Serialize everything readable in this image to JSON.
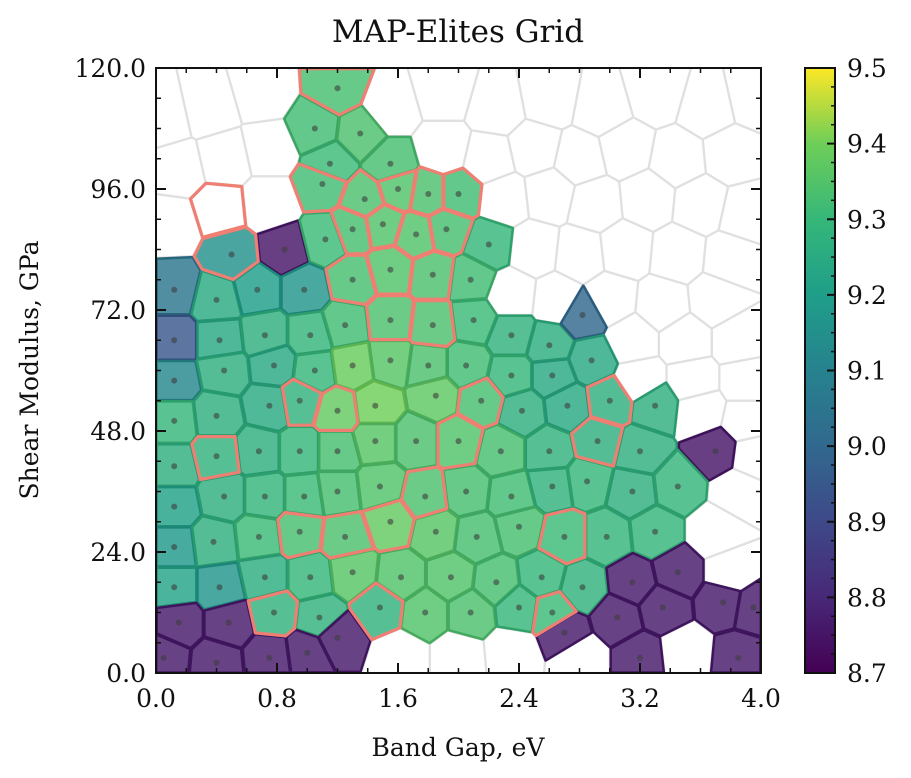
{
  "chart_data": {
    "type": "heatmap",
    "subtype": "voronoi-map-elites",
    "title": "MAP-Elites Grid",
    "xlabel": "Band Gap, eV",
    "ylabel": "Shear Modulus, GPa",
    "xlim": [
      0.0,
      4.0
    ],
    "ylim": [
      0.0,
      120.0
    ],
    "xticks": [
      "0.0",
      "0.8",
      "1.6",
      "2.4",
      "3.2",
      "4.0"
    ],
    "yticks": [
      "0.0",
      "24.0",
      "48.0",
      "72.0",
      "96.0",
      "120.0"
    ],
    "colorbar": {
      "min": 8.7,
      "max": 9.5,
      "ticks": [
        "8.7",
        "8.8",
        "8.9",
        "9.0",
        "9.1",
        "9.2",
        "9.3",
        "9.4",
        "9.5"
      ],
      "colormap": "viridis"
    },
    "highlight_color": "#f07f73",
    "empty_cell_color": "#e0e0e0",
    "cells": [
      {
        "x": 0.05,
        "y": 110,
        "v": null
      },
      {
        "x": 0.35,
        "y": 112,
        "v": null
      },
      {
        "x": 0.7,
        "y": 115,
        "v": null
      },
      {
        "x": 1.2,
        "y": 116,
        "v": 9.33,
        "h": true
      },
      {
        "x": 1.55,
        "y": 112,
        "v": null
      },
      {
        "x": 1.9,
        "y": 115,
        "v": null
      },
      {
        "x": 2.25,
        "y": 112,
        "v": null
      },
      {
        "x": 2.6,
        "y": 114,
        "v": null
      },
      {
        "x": 2.95,
        "y": 112,
        "v": null
      },
      {
        "x": 3.3,
        "y": 115,
        "v": null
      },
      {
        "x": 3.65,
        "y": 112,
        "v": null
      },
      {
        "x": 3.95,
        "y": 114,
        "v": null
      },
      {
        "x": 0.15,
        "y": 100,
        "v": null
      },
      {
        "x": 0.45,
        "y": 102,
        "v": null
      },
      {
        "x": 0.75,
        "y": 104,
        "v": null
      },
      {
        "x": 1.05,
        "y": 108,
        "v": 9.32
      },
      {
        "x": 1.35,
        "y": 107,
        "v": 9.34
      },
      {
        "x": 1.15,
        "y": 101,
        "v": 9.31
      },
      {
        "x": 1.55,
        "y": 101,
        "v": 9.33
      },
      {
        "x": 1.9,
        "y": 104,
        "v": null
      },
      {
        "x": 2.2,
        "y": 102,
        "v": null
      },
      {
        "x": 2.5,
        "y": 104,
        "v": null
      },
      {
        "x": 2.8,
        "y": 102,
        "v": null
      },
      {
        "x": 3.1,
        "y": 104,
        "v": null
      },
      {
        "x": 3.45,
        "y": 102,
        "v": null
      },
      {
        "x": 3.8,
        "y": 103,
        "v": null
      },
      {
        "x": 0.1,
        "y": 89,
        "v": null
      },
      {
        "x": 0.42,
        "y": 92,
        "v": null,
        "h": true
      },
      {
        "x": 0.75,
        "y": 93,
        "v": null
      },
      {
        "x": 1.1,
        "y": 97,
        "v": 9.32,
        "h": true
      },
      {
        "x": 1.38,
        "y": 94,
        "v": 9.34,
        "h": true
      },
      {
        "x": 1.6,
        "y": 96,
        "v": 9.35,
        "h": true
      },
      {
        "x": 1.8,
        "y": 95,
        "v": 9.34,
        "h": true
      },
      {
        "x": 2.0,
        "y": 95,
        "v": 9.32,
        "h": true
      },
      {
        "x": 2.3,
        "y": 94,
        "v": null
      },
      {
        "x": 2.6,
        "y": 95,
        "v": null
      },
      {
        "x": 2.9,
        "y": 93,
        "v": null
      },
      {
        "x": 3.25,
        "y": 94,
        "v": null
      },
      {
        "x": 3.6,
        "y": 93,
        "v": null
      },
      {
        "x": 3.9,
        "y": 91,
        "v": null
      },
      {
        "x": 0.5,
        "y": 83,
        "v": 9.15,
        "h": true
      },
      {
        "x": 0.85,
        "y": 84,
        "v": 8.75
      },
      {
        "x": 1.12,
        "y": 86,
        "v": 9.31
      },
      {
        "x": 1.3,
        "y": 88,
        "v": 9.33,
        "h": true
      },
      {
        "x": 1.5,
        "y": 89,
        "v": 9.35,
        "h": true
      },
      {
        "x": 1.72,
        "y": 87,
        "v": 9.35,
        "h": true
      },
      {
        "x": 1.92,
        "y": 88,
        "v": 9.33,
        "h": true
      },
      {
        "x": 2.2,
        "y": 85,
        "v": 9.3
      },
      {
        "x": 2.5,
        "y": 84,
        "v": null
      },
      {
        "x": 2.8,
        "y": 83,
        "v": null
      },
      {
        "x": 3.1,
        "y": 84,
        "v": null
      },
      {
        "x": 3.45,
        "y": 83,
        "v": null
      },
      {
        "x": 3.8,
        "y": 82,
        "v": null
      },
      {
        "x": 0.12,
        "y": 76,
        "v": 9.05
      },
      {
        "x": 0.4,
        "y": 74,
        "v": 9.25
      },
      {
        "x": 0.67,
        "y": 76,
        "v": 9.2
      },
      {
        "x": 0.98,
        "y": 76,
        "v": 9.17
      },
      {
        "x": 1.3,
        "y": 78,
        "v": 9.33,
        "h": true
      },
      {
        "x": 1.55,
        "y": 80,
        "v": 9.35,
        "h": true
      },
      {
        "x": 1.83,
        "y": 79,
        "v": 9.34,
        "h": true
      },
      {
        "x": 2.08,
        "y": 78,
        "v": 9.32
      },
      {
        "x": 2.35,
        "y": 75,
        "v": null
      },
      {
        "x": 2.65,
        "y": 74,
        "v": null
      },
      {
        "x": 3.0,
        "y": 74,
        "v": null
      },
      {
        "x": 3.35,
        "y": 73,
        "v": null
      },
      {
        "x": 3.7,
        "y": 74,
        "v": null
      },
      {
        "x": 0.12,
        "y": 66,
        "v": 8.95
      },
      {
        "x": 0.42,
        "y": 66,
        "v": 9.24
      },
      {
        "x": 0.72,
        "y": 67,
        "v": 9.27
      },
      {
        "x": 1.02,
        "y": 67,
        "v": 9.29
      },
      {
        "x": 1.25,
        "y": 69,
        "v": 9.32
      },
      {
        "x": 1.55,
        "y": 70,
        "v": 9.34,
        "h": true
      },
      {
        "x": 1.83,
        "y": 69,
        "v": 9.34,
        "h": true
      },
      {
        "x": 2.1,
        "y": 70,
        "v": 9.31
      },
      {
        "x": 2.35,
        "y": 67,
        "v": 9.28
      },
      {
        "x": 2.6,
        "y": 65,
        "v": 9.26
      },
      {
        "x": 2.82,
        "y": 71,
        "v": 9.0
      },
      {
        "x": 3.15,
        "y": 66,
        "v": null
      },
      {
        "x": 3.5,
        "y": 66,
        "v": null
      },
      {
        "x": 3.85,
        "y": 66,
        "v": null
      },
      {
        "x": 0.12,
        "y": 58,
        "v": 9.12
      },
      {
        "x": 0.45,
        "y": 60,
        "v": 9.27
      },
      {
        "x": 0.78,
        "y": 61,
        "v": 9.24
      },
      {
        "x": 1.05,
        "y": 60,
        "v": 9.3
      },
      {
        "x": 1.3,
        "y": 61,
        "v": 9.39
      },
      {
        "x": 1.55,
        "y": 62,
        "v": 9.36
      },
      {
        "x": 1.8,
        "y": 61,
        "v": 9.34
      },
      {
        "x": 2.05,
        "y": 61,
        "v": 9.32
      },
      {
        "x": 2.35,
        "y": 59,
        "v": 9.3
      },
      {
        "x": 2.62,
        "y": 59,
        "v": 9.24
      },
      {
        "x": 2.88,
        "y": 62,
        "v": 9.24
      },
      {
        "x": 3.2,
        "y": 58,
        "v": null
      },
      {
        "x": 3.55,
        "y": 58,
        "v": null
      },
      {
        "x": 3.9,
        "y": 58,
        "v": null
      },
      {
        "x": 0.12,
        "y": 50,
        "v": 9.3
      },
      {
        "x": 0.4,
        "y": 51,
        "v": 9.27
      },
      {
        "x": 0.75,
        "y": 53,
        "v": 9.25
      },
      {
        "x": 0.95,
        "y": 54,
        "v": 9.28,
        "h": true
      },
      {
        "x": 1.2,
        "y": 52,
        "v": 9.38,
        "h": true
      },
      {
        "x": 1.45,
        "y": 53,
        "v": 9.4
      },
      {
        "x": 1.85,
        "y": 55,
        "v": 9.37
      },
      {
        "x": 2.15,
        "y": 54,
        "v": 9.33,
        "h": true
      },
      {
        "x": 2.42,
        "y": 52,
        "v": 9.27
      },
      {
        "x": 2.72,
        "y": 53,
        "v": 9.24
      },
      {
        "x": 3.0,
        "y": 54,
        "v": 9.27,
        "h": true
      },
      {
        "x": 3.3,
        "y": 53,
        "v": 9.27
      },
      {
        "x": 3.6,
        "y": 52,
        "v": null
      },
      {
        "x": 3.9,
        "y": 50,
        "v": null
      },
      {
        "x": 0.12,
        "y": 41,
        "v": 9.27
      },
      {
        "x": 0.4,
        "y": 43,
        "v": 9.28,
        "h": true
      },
      {
        "x": 0.68,
        "y": 44,
        "v": 9.27
      },
      {
        "x": 0.95,
        "y": 44,
        "v": 9.3
      },
      {
        "x": 1.2,
        "y": 44,
        "v": 9.33
      },
      {
        "x": 1.45,
        "y": 46,
        "v": 9.36
      },
      {
        "x": 1.72,
        "y": 46,
        "v": 9.34
      },
      {
        "x": 2.0,
        "y": 46,
        "v": 9.35,
        "h": true
      },
      {
        "x": 2.28,
        "y": 44,
        "v": 9.33
      },
      {
        "x": 2.6,
        "y": 44,
        "v": 9.28
      },
      {
        "x": 2.92,
        "y": 46,
        "v": 9.27,
        "h": true
      },
      {
        "x": 3.2,
        "y": 44,
        "v": 9.27
      },
      {
        "x": 3.7,
        "y": 44,
        "v": 8.75
      },
      {
        "x": 3.95,
        "y": 43,
        "v": null
      },
      {
        "x": 0.12,
        "y": 33,
        "v": 9.21
      },
      {
        "x": 0.45,
        "y": 35,
        "v": 9.27
      },
      {
        "x": 0.72,
        "y": 35,
        "v": 9.29
      },
      {
        "x": 0.98,
        "y": 35,
        "v": 9.31
      },
      {
        "x": 1.2,
        "y": 36,
        "v": 9.33
      },
      {
        "x": 1.48,
        "y": 37,
        "v": 9.35
      },
      {
        "x": 1.78,
        "y": 35,
        "v": 9.34,
        "h": true
      },
      {
        "x": 2.05,
        "y": 36,
        "v": 9.33
      },
      {
        "x": 2.35,
        "y": 35,
        "v": 9.32
      },
      {
        "x": 2.62,
        "y": 37,
        "v": 9.28
      },
      {
        "x": 2.85,
        "y": 38,
        "v": 9.3
      },
      {
        "x": 3.15,
        "y": 36,
        "v": 9.27
      },
      {
        "x": 3.45,
        "y": 37,
        "v": 9.29
      },
      {
        "x": 3.85,
        "y": 36,
        "v": null
      },
      {
        "x": 0.12,
        "y": 25,
        "v": 9.18
      },
      {
        "x": 0.38,
        "y": 26,
        "v": 9.27
      },
      {
        "x": 0.68,
        "y": 27,
        "v": 9.31
      },
      {
        "x": 0.95,
        "y": 28,
        "v": 9.33,
        "h": true
      },
      {
        "x": 1.25,
        "y": 27,
        "v": 9.34,
        "h": true
      },
      {
        "x": 1.55,
        "y": 30,
        "v": 9.38,
        "h": true
      },
      {
        "x": 1.85,
        "y": 28,
        "v": 9.36
      },
      {
        "x": 2.12,
        "y": 27,
        "v": 9.33
      },
      {
        "x": 2.4,
        "y": 29,
        "v": 9.33
      },
      {
        "x": 2.7,
        "y": 27,
        "v": 9.31,
        "h": true
      },
      {
        "x": 2.98,
        "y": 27,
        "v": 9.29
      },
      {
        "x": 3.3,
        "y": 28,
        "v": 9.29
      },
      {
        "x": 3.7,
        "y": 28,
        "v": null
      },
      {
        "x": 0.12,
        "y": 17,
        "v": 9.22
      },
      {
        "x": 0.42,
        "y": 17,
        "v": 9.17
      },
      {
        "x": 0.72,
        "y": 19,
        "v": 9.26
      },
      {
        "x": 1.02,
        "y": 19,
        "v": 9.3
      },
      {
        "x": 1.3,
        "y": 20,
        "v": 9.36
      },
      {
        "x": 1.62,
        "y": 19,
        "v": 9.35
      },
      {
        "x": 1.95,
        "y": 19,
        "v": 9.35
      },
      {
        "x": 2.25,
        "y": 18,
        "v": 9.33
      },
      {
        "x": 2.55,
        "y": 19,
        "v": 9.3
      },
      {
        "x": 2.82,
        "y": 17,
        "v": 9.28
      },
      {
        "x": 3.15,
        "y": 18,
        "v": 8.76
      },
      {
        "x": 3.45,
        "y": 20,
        "v": 8.76
      },
      {
        "x": 3.8,
        "y": 20,
        "v": null
      },
      {
        "x": 0.15,
        "y": 10,
        "v": 8.76
      },
      {
        "x": 0.48,
        "y": 10,
        "v": 8.76
      },
      {
        "x": 0.78,
        "y": 12,
        "v": 9.28,
        "h": true
      },
      {
        "x": 1.08,
        "y": 11,
        "v": 9.28
      },
      {
        "x": 1.2,
        "y": 7,
        "v": 8.76
      },
      {
        "x": 1.48,
        "y": 13,
        "v": 9.28,
        "h": true
      },
      {
        "x": 1.78,
        "y": 12,
        "v": 9.35
      },
      {
        "x": 2.08,
        "y": 12,
        "v": 9.34
      },
      {
        "x": 2.4,
        "y": 13,
        "v": 9.3
      },
      {
        "x": 2.62,
        "y": 12,
        "v": 9.31,
        "h": true
      },
      {
        "x": 2.7,
        "y": 8,
        "v": 8.76
      },
      {
        "x": 3.05,
        "y": 11,
        "v": 8.76
      },
      {
        "x": 3.35,
        "y": 13,
        "v": 8.76
      },
      {
        "x": 3.75,
        "y": 14,
        "v": 8.76
      },
      {
        "x": 3.95,
        "y": 13,
        "v": 8.76
      },
      {
        "x": 0.05,
        "y": 3,
        "v": 8.76
      },
      {
        "x": 0.4,
        "y": 2,
        "v": 8.76
      },
      {
        "x": 0.75,
        "y": 3,
        "v": 8.76
      },
      {
        "x": 1.0,
        "y": 4,
        "v": 8.76
      },
      {
        "x": 1.62,
        "y": 3,
        "v": null
      },
      {
        "x": 2.0,
        "y": 3,
        "v": null
      },
      {
        "x": 2.35,
        "y": 4,
        "v": null
      },
      {
        "x": 2.8,
        "y": 3,
        "v": null
      },
      {
        "x": 3.2,
        "y": 3,
        "v": 8.76
      },
      {
        "x": 3.5,
        "y": 4,
        "v": null
      },
      {
        "x": 3.85,
        "y": 3,
        "v": 8.76
      }
    ]
  }
}
